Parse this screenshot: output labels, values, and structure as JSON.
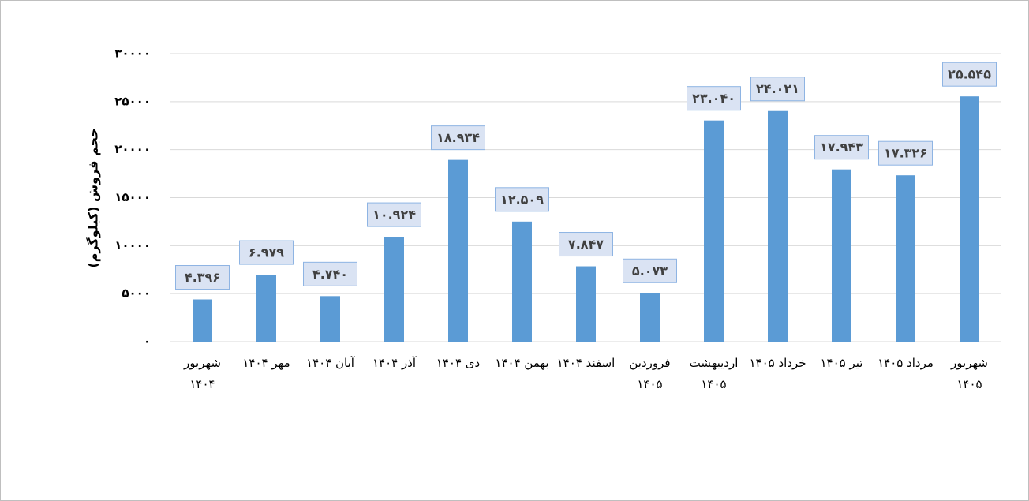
{
  "chart_data": {
    "type": "bar",
    "y_label": "حجم فروش (کیلوگرم)",
    "categories": [
      "شهریور ۱۴۰۴",
      "مهر ۱۴۰۴",
      "آبان ۱۴۰۴",
      "آذر ۱۴۰۴",
      "دی ۱۴۰۴",
      "بهمن ۱۴۰۴",
      "اسفند ۱۴۰۴",
      "فروردین ۱۴۰۵",
      "اردیبهشت ۱۴۰۵",
      "خرداد ۱۴۰۵",
      "تیر ۱۴۰۵",
      "مرداد ۱۴۰۵",
      "شهریور ۱۴۰۵"
    ],
    "values": [
      4396,
      6979,
      4740,
      10924,
      18934,
      12509,
      7847,
      5073,
      23040,
      24021,
      17943,
      17326,
      25545
    ],
    "value_labels": [
      "۴.۳۹۶",
      "۶.۹۷۹",
      "۴.۷۴۰",
      "۱۰.۹۲۴",
      "۱۸.۹۳۴",
      "۱۲.۵۰۹",
      "۷.۸۴۷",
      "۵.۰۷۳",
      "۲۳.۰۴۰",
      "۲۴.۰۲۱",
      "۱۷.۹۴۳",
      "۱۷.۳۲۶",
      "۲۵.۵۴۵"
    ],
    "color": "#5b9bd5",
    "ylim": [
      0,
      30000
    ],
    "yticks": [
      {
        "value": 0,
        "label": "۰"
      },
      {
        "value": 5000,
        "label": "۵۰۰۰"
      },
      {
        "value": 10000,
        "label": "۱۰۰۰۰"
      },
      {
        "value": 15000,
        "label": "۱۵۰۰۰"
      },
      {
        "value": 20000,
        "label": "۲۰۰۰۰"
      },
      {
        "value": 25000,
        "label": "۲۵۰۰۰"
      },
      {
        "value": 30000,
        "label": "۳۰۰۰۰"
      }
    ],
    "grid": true
  }
}
